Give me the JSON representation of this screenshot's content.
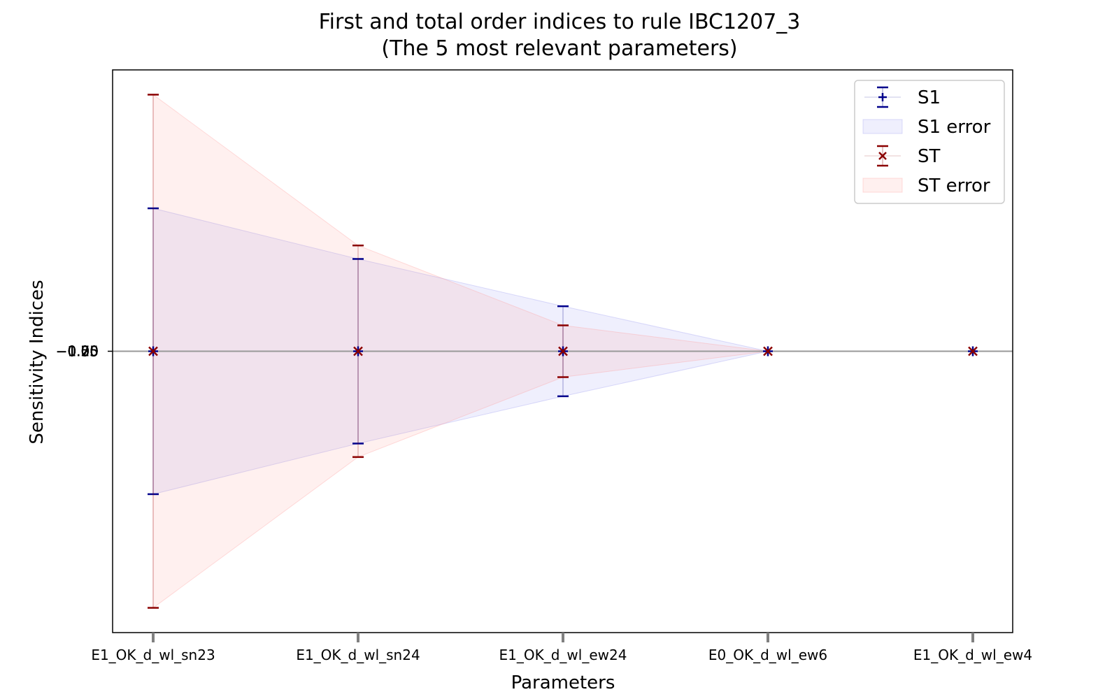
{
  "chart_data": {
    "type": "line",
    "title": "First and total order indices to rule IBC1207_3",
    "subtitle": "(The 5 most relevant parameters)",
    "xlabel": "Parameters",
    "ylabel": "Sensitivity Indices",
    "categories": [
      "E1_OK_d_wl_sn23",
      "E1_OK_d_wl_sn24",
      "E1_OK_d_wl_ew24",
      "E0_OK_d_wl_ew6",
      "E1_OK_d_wl_ew4"
    ],
    "y_tick_labels": [
      "−1.00",
      "−0.75",
      "−0.50",
      "−0.25",
      "0.00",
      "0.25",
      "0.50",
      "0.75",
      "1.00",
      "1.25"
    ],
    "ylim": [
      -1.25,
      1.25
    ],
    "series": [
      {
        "name": "S1",
        "values": [
          0,
          0,
          0,
          0,
          0
        ],
        "errors": [
          0.635,
          0.41,
          0.2,
          0,
          0
        ],
        "color": "#00008b",
        "marker": "+"
      },
      {
        "name": "ST",
        "values": [
          0,
          0,
          0,
          0,
          0
        ],
        "errors": [
          1.14,
          0.47,
          0.115,
          0,
          0
        ],
        "color": "#8b0000",
        "marker": "x"
      }
    ],
    "error_bands": [
      {
        "name": "S1 error",
        "color": "#e6e6fa"
      },
      {
        "name": "ST error",
        "color": "#ffe4e1"
      }
    ],
    "legend": {
      "position": "top-right",
      "entries": [
        "S1",
        "S1 error",
        "ST",
        "ST error"
      ]
    },
    "grid": false
  }
}
